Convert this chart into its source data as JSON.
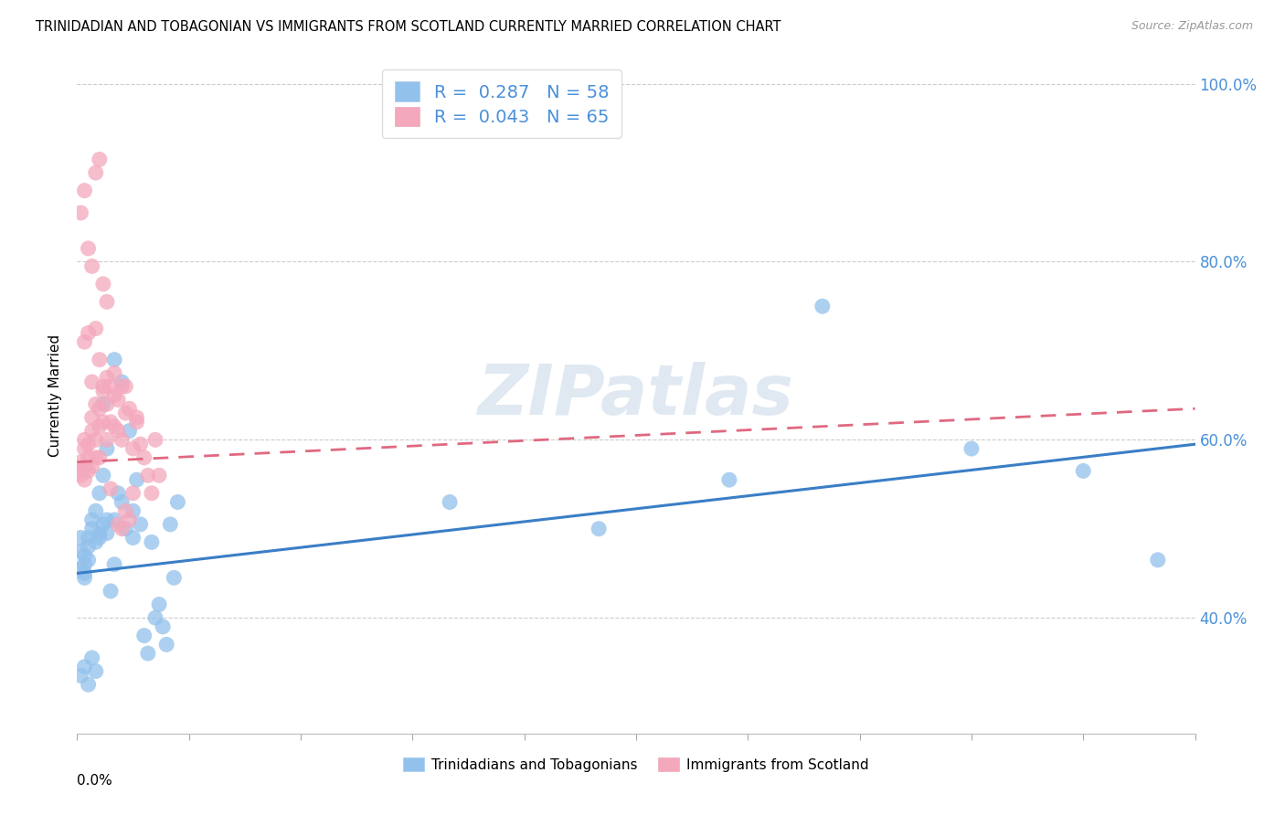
{
  "title": "TRINIDADIAN AND TOBAGONIAN VS IMMIGRANTS FROM SCOTLAND CURRENTLY MARRIED CORRELATION CHART",
  "source": "Source: ZipAtlas.com",
  "ylabel": "Currently Married",
  "series1_label": "Trinidadians and Tobagonians",
  "series2_label": "Immigrants from Scotland",
  "R1": 0.287,
  "N1": 58,
  "R2": 0.043,
  "N2": 65,
  "color1": "#92C1EC",
  "color2": "#F4A8BC",
  "line_color1": "#3A7EC6",
  "line_color2": "#E06880",
  "watermark": "ZIPatlas",
  "xlim": [
    0.0,
    0.3
  ],
  "ylim": [
    0.27,
    1.03
  ],
  "yticks": [
    0.4,
    0.6,
    0.8,
    1.0
  ],
  "ytick_labels": [
    "40.0%",
    "60.0%",
    "80.0%",
    "100.0%"
  ],
  "xtick_count": 11,
  "blue_x": [
    0.001,
    0.001,
    0.001,
    0.002,
    0.002,
    0.002,
    0.002,
    0.003,
    0.003,
    0.003,
    0.004,
    0.004,
    0.005,
    0.005,
    0.006,
    0.006,
    0.007,
    0.007,
    0.008,
    0.008,
    0.009,
    0.01,
    0.01,
    0.011,
    0.012,
    0.013,
    0.014,
    0.015,
    0.016,
    0.017,
    0.018,
    0.019,
    0.02,
    0.021,
    0.022,
    0.023,
    0.024,
    0.025,
    0.026,
    0.027,
    0.001,
    0.002,
    0.003,
    0.004,
    0.005,
    0.006,
    0.007,
    0.008,
    0.01,
    0.012,
    0.015,
    0.1,
    0.14,
    0.175,
    0.2,
    0.24,
    0.27,
    0.29
  ],
  "blue_y": [
    0.455,
    0.475,
    0.49,
    0.445,
    0.46,
    0.45,
    0.47,
    0.48,
    0.465,
    0.49,
    0.5,
    0.51,
    0.485,
    0.52,
    0.495,
    0.54,
    0.505,
    0.56,
    0.51,
    0.495,
    0.43,
    0.51,
    0.46,
    0.54,
    0.53,
    0.5,
    0.61,
    0.52,
    0.555,
    0.505,
    0.38,
    0.36,
    0.485,
    0.4,
    0.415,
    0.39,
    0.37,
    0.505,
    0.445,
    0.53,
    0.335,
    0.345,
    0.325,
    0.355,
    0.34,
    0.49,
    0.64,
    0.59,
    0.69,
    0.665,
    0.49,
    0.53,
    0.5,
    0.555,
    0.75,
    0.59,
    0.565,
    0.465
  ],
  "pink_x": [
    0.001,
    0.001,
    0.001,
    0.002,
    0.002,
    0.002,
    0.002,
    0.003,
    0.003,
    0.003,
    0.004,
    0.004,
    0.004,
    0.005,
    0.005,
    0.005,
    0.006,
    0.006,
    0.006,
    0.007,
    0.007,
    0.007,
    0.008,
    0.008,
    0.008,
    0.009,
    0.009,
    0.01,
    0.01,
    0.011,
    0.011,
    0.012,
    0.012,
    0.013,
    0.013,
    0.014,
    0.015,
    0.016,
    0.017,
    0.018,
    0.019,
    0.02,
    0.021,
    0.022,
    0.001,
    0.002,
    0.003,
    0.004,
    0.005,
    0.006,
    0.007,
    0.008,
    0.009,
    0.01,
    0.011,
    0.012,
    0.013,
    0.014,
    0.015,
    0.016,
    0.002,
    0.003,
    0.004,
    0.005,
    0.006
  ],
  "pink_y": [
    0.565,
    0.575,
    0.56,
    0.59,
    0.6,
    0.57,
    0.555,
    0.58,
    0.565,
    0.595,
    0.61,
    0.625,
    0.57,
    0.6,
    0.64,
    0.58,
    0.615,
    0.635,
    0.58,
    0.655,
    0.66,
    0.62,
    0.67,
    0.64,
    0.6,
    0.66,
    0.62,
    0.65,
    0.615,
    0.645,
    0.61,
    0.66,
    0.6,
    0.63,
    0.66,
    0.635,
    0.59,
    0.62,
    0.595,
    0.58,
    0.56,
    0.54,
    0.6,
    0.56,
    0.855,
    0.88,
    0.815,
    0.795,
    0.9,
    0.915,
    0.775,
    0.755,
    0.545,
    0.675,
    0.505,
    0.5,
    0.52,
    0.51,
    0.54,
    0.625,
    0.71,
    0.72,
    0.665,
    0.725,
    0.69
  ],
  "blue_line_x0": 0.0,
  "blue_line_x1": 0.3,
  "blue_line_y0": 0.45,
  "blue_line_y1": 0.595,
  "pink_line_x0": 0.0,
  "pink_line_x1": 0.3,
  "pink_line_y0": 0.575,
  "pink_line_y1": 0.635
}
